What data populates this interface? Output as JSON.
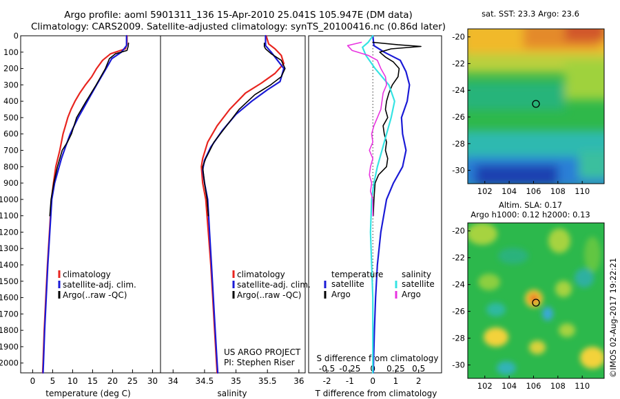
{
  "header": {
    "title_line1": "Argo profile: aoml 5901311_136 15-Apr-2010 25.041S 105.947E (DM data)",
    "title_line2": "Climatology: CARS2009. Satellite-adjusted climatology: synTS_20100416.nc (0.86d later)"
  },
  "colors": {
    "climatology": "#e8251f",
    "satellite": "#1a1ad6",
    "argo": "#000000",
    "satellite_s": "#35e3e3",
    "argo_s": "#e832e0"
  },
  "depth_ticks": [
    "0",
    "100",
    "200",
    "300",
    "400",
    "500",
    "600",
    "700",
    "800",
    "900",
    "1000",
    "1100",
    "1200",
    "1300",
    "1400",
    "1500",
    "1600",
    "1700",
    "1800",
    "1900",
    "2000"
  ],
  "panels": {
    "temperature": {
      "xlabel": "temperature (deg C)",
      "xticks": [
        "0",
        "5",
        "10",
        "15",
        "20",
        "25",
        "30"
      ],
      "legend": [
        "climatology",
        "satellite-adj. clim.",
        "Argo(..raw -QC)"
      ]
    },
    "salinity": {
      "xlabel": "salinity",
      "xticks": [
        "34",
        "34.5",
        "35",
        "35.5",
        "36"
      ],
      "legend": [
        "climatology",
        "satellite-adj. clim.",
        "Argo(..raw -QC)"
      ],
      "project_line1": "US ARGO PROJECT",
      "project_line2": "PI: Stephen Riser"
    },
    "difference": {
      "xlabel": "T difference from climatology",
      "xticks": [
        "-2",
        "-1",
        "0",
        "1",
        "2"
      ],
      "top_label": "S difference from climatology",
      "top_ticks": [
        "-0.5",
        "-0.25",
        "0",
        "0.25",
        "0.5"
      ],
      "legend_t_title": "temperature",
      "legend_s_title": "salinity",
      "legend_t": [
        "satellite",
        "Argo"
      ],
      "legend_s": [
        "satellite",
        "Argo"
      ]
    }
  },
  "maps": {
    "sst_title": "sat. SST: 23.3 Argo: 23.6",
    "sla_title1": "Altim. SLA: 0.17",
    "sla_title2": "Argo h1000: 0.12 h2000: 0.13",
    "lon_ticks": [
      "102",
      "104",
      "106",
      "108",
      "110"
    ],
    "lat_ticks": [
      "-20",
      "-22",
      "-24",
      "-26",
      "-28",
      "-30"
    ]
  },
  "credit": "©IMOS 02-Aug-2017 19:22:21",
  "chart_data": [
    {
      "type": "line",
      "panel": "temperature",
      "xlabel": "temperature (deg C)",
      "ylabel": "",
      "xlim": [
        -3,
        32
      ],
      "ylim": [
        2060,
        0
      ],
      "series": [
        {
          "name": "climatology",
          "color": "#e8251f",
          "width": 2.2,
          "pts": [
            [
              23.6,
              0
            ],
            [
              23.6,
              50
            ],
            [
              23.2,
              80
            ],
            [
              19.5,
              110
            ],
            [
              17.5,
              150
            ],
            [
              16,
              200
            ],
            [
              14.8,
              250
            ],
            [
              13.2,
              300
            ],
            [
              11.8,
              350
            ],
            [
              10.6,
              400
            ],
            [
              9.6,
              450
            ],
            [
              8.8,
              500
            ],
            [
              8.2,
              550
            ],
            [
              7.6,
              600
            ],
            [
              6.8,
              700
            ],
            [
              5.8,
              800
            ],
            [
              5.2,
              900
            ],
            [
              4.7,
              1000
            ],
            [
              4.2,
              1200
            ],
            [
              3.7,
              1400
            ],
            [
              3.3,
              1600
            ],
            [
              2.9,
              1800
            ],
            [
              2.6,
              2000
            ],
            [
              2.5,
              2060
            ]
          ]
        },
        {
          "name": "satellite-adj. clim.",
          "color": "#1a1ad6",
          "width": 2.2,
          "pts": [
            [
              23.5,
              0
            ],
            [
              23.5,
              60
            ],
            [
              22.2,
              100
            ],
            [
              19.8,
              140
            ],
            [
              18.4,
              200
            ],
            [
              16,
              300
            ],
            [
              13.7,
              400
            ],
            [
              11.4,
              500
            ],
            [
              9.4,
              600
            ],
            [
              8.2,
              680
            ],
            [
              7.2,
              750
            ],
            [
              6.3,
              830
            ],
            [
              5.5,
              900
            ],
            [
              4.8,
              1000
            ],
            [
              4.3,
              1200
            ],
            [
              3.8,
              1400
            ],
            [
              3.4,
              1600
            ],
            [
              3.0,
              1800
            ],
            [
              2.7,
              2000
            ],
            [
              2.6,
              2060
            ]
          ]
        },
        {
          "name": "Argo(..raw -QC)",
          "color": "#000000",
          "width": 1.6,
          "pts": [
            [
              24.0,
              45
            ],
            [
              23.9,
              65
            ],
            [
              23.6,
              90
            ],
            [
              20.7,
              110
            ],
            [
              19.2,
              140
            ],
            [
              18.2,
              200
            ],
            [
              15.9,
              300
            ],
            [
              13.4,
              400
            ],
            [
              11.0,
              500
            ],
            [
              9.7,
              600
            ],
            [
              8.7,
              650
            ],
            [
              7.4,
              700
            ],
            [
              6.2,
              800
            ],
            [
              5.3,
              900
            ],
            [
              4.6,
              1000
            ],
            [
              4.3,
              1100
            ]
          ]
        }
      ]
    },
    {
      "type": "line",
      "panel": "salinity",
      "xlabel": "salinity",
      "ylabel": "",
      "xlim": [
        33.8,
        36.1
      ],
      "ylim": [
        2060,
        0
      ],
      "series": [
        {
          "name": "climatology",
          "color": "#e8251f",
          "width": 2.2,
          "pts": [
            [
              35.48,
              0
            ],
            [
              35.52,
              50
            ],
            [
              35.62,
              80
            ],
            [
              35.72,
              120
            ],
            [
              35.76,
              170
            ],
            [
              35.62,
              230
            ],
            [
              35.4,
              290
            ],
            [
              35.15,
              350
            ],
            [
              34.9,
              450
            ],
            [
              34.7,
              550
            ],
            [
              34.55,
              650
            ],
            [
              34.47,
              750
            ],
            [
              34.45,
              800
            ],
            [
              34.47,
              900
            ],
            [
              34.52,
              1000
            ],
            [
              34.56,
              1200
            ],
            [
              34.6,
              1400
            ],
            [
              34.63,
              1600
            ],
            [
              34.66,
              1800
            ],
            [
              34.69,
              2000
            ],
            [
              34.7,
              2060
            ]
          ]
        },
        {
          "name": "satellite-adj. clim.",
          "color": "#1a1ad6",
          "width": 2.2,
          "pts": [
            [
              35.47,
              0
            ],
            [
              35.47,
              60
            ],
            [
              35.56,
              100
            ],
            [
              35.66,
              150
            ],
            [
              35.76,
              200
            ],
            [
              35.7,
              280
            ],
            [
              35.5,
              330
            ],
            [
              35.25,
              400
            ],
            [
              35.0,
              480
            ],
            [
              34.78,
              580
            ],
            [
              34.6,
              680
            ],
            [
              34.5,
              760
            ],
            [
              34.47,
              820
            ],
            [
              34.5,
              900
            ],
            [
              34.55,
              1000
            ],
            [
              34.58,
              1200
            ],
            [
              34.61,
              1400
            ],
            [
              34.64,
              1600
            ],
            [
              34.67,
              1800
            ],
            [
              34.7,
              2000
            ],
            [
              34.71,
              2060
            ]
          ]
        },
        {
          "name": "Argo(..raw -QC)",
          "color": "#000000",
          "width": 1.6,
          "pts": [
            [
              35.45,
              45
            ],
            [
              35.45,
              65
            ],
            [
              35.47,
              80
            ],
            [
              35.56,
              110
            ],
            [
              35.72,
              150
            ],
            [
              35.78,
              200
            ],
            [
              35.72,
              250
            ],
            [
              35.55,
              300
            ],
            [
              35.3,
              360
            ],
            [
              35.05,
              450
            ],
            [
              34.85,
              550
            ],
            [
              34.65,
              650
            ],
            [
              34.52,
              750
            ],
            [
              34.47,
              800
            ],
            [
              34.5,
              900
            ],
            [
              34.54,
              1000
            ],
            [
              34.56,
              1100
            ]
          ]
        }
      ]
    },
    {
      "type": "line",
      "panel": "difference",
      "xlabel": "T difference from climatology",
      "ylabel": "",
      "xlim": [
        -2.8,
        3.0
      ],
      "ylim": [
        2060,
        0
      ],
      "series": [
        {
          "name": "satellite",
          "group": "temperature",
          "color": "#1a1ad6",
          "width": 2.2,
          "pts": [
            [
              0.0,
              0
            ],
            [
              0.05,
              60
            ],
            [
              0.5,
              100
            ],
            [
              1.2,
              150
            ],
            [
              1.45,
              220
            ],
            [
              1.6,
              300
            ],
            [
              1.5,
              400
            ],
            [
              1.25,
              500
            ],
            [
              1.3,
              600
            ],
            [
              1.45,
              700
            ],
            [
              1.3,
              800
            ],
            [
              0.9,
              900
            ],
            [
              0.6,
              1000
            ],
            [
              0.35,
              1200
            ],
            [
              0.2,
              1400
            ],
            [
              0.12,
              1600
            ],
            [
              0.07,
              1800
            ],
            [
              0.03,
              2000
            ],
            [
              0.02,
              2060
            ]
          ]
        },
        {
          "name": "Argo",
          "group": "temperature",
          "color": "#000000",
          "width": 1.6,
          "pts": [
            [
              0.0,
              40
            ],
            [
              1.1,
              55
            ],
            [
              2.1,
              65
            ],
            [
              0.8,
              80
            ],
            [
              0.3,
              100
            ],
            [
              0.55,
              130
            ],
            [
              0.9,
              160
            ],
            [
              1.15,
              200
            ],
            [
              1.1,
              250
            ],
            [
              0.85,
              300
            ],
            [
              0.7,
              350
            ],
            [
              0.6,
              400
            ],
            [
              0.55,
              450
            ],
            [
              0.65,
              500
            ],
            [
              0.45,
              550
            ],
            [
              0.5,
              600
            ],
            [
              0.6,
              650
            ],
            [
              0.55,
              700
            ],
            [
              0.65,
              750
            ],
            [
              0.6,
              800
            ],
            [
              0.25,
              850
            ],
            [
              0.1,
              900
            ],
            [
              0.05,
              1000
            ],
            [
              0.02,
              1100
            ]
          ]
        },
        {
          "name": "satellite",
          "group": "salinity",
          "color": "#35e3e3",
          "width": 2.2,
          "pts": [
            [
              0.0,
              0
            ],
            [
              -0.2,
              40
            ],
            [
              -0.45,
              70
            ],
            [
              -0.3,
              120
            ],
            [
              0.1,
              200
            ],
            [
              0.7,
              300
            ],
            [
              0.95,
              400
            ],
            [
              0.8,
              500
            ],
            [
              0.6,
              600
            ],
            [
              0.4,
              700
            ],
            [
              0.2,
              800
            ],
            [
              0.05,
              900
            ],
            [
              -0.05,
              1000
            ],
            [
              -0.1,
              1200
            ],
            [
              -0.05,
              1400
            ],
            [
              0.0,
              1600
            ],
            [
              0.0,
              1800
            ],
            [
              0.0,
              2000
            ],
            [
              0.0,
              2060
            ]
          ]
        },
        {
          "name": "Argo",
          "group": "salinity",
          "color": "#e832e0",
          "width": 1.6,
          "pts": [
            [
              -0.5,
              40
            ],
            [
              -1.1,
              60
            ],
            [
              -0.9,
              90
            ],
            [
              -0.2,
              120
            ],
            [
              0.2,
              150
            ],
            [
              0.35,
              200
            ],
            [
              0.55,
              250
            ],
            [
              0.6,
              300
            ],
            [
              0.45,
              350
            ],
            [
              0.4,
              400
            ],
            [
              0.35,
              450
            ],
            [
              0.2,
              500
            ],
            [
              0.05,
              550
            ],
            [
              -0.05,
              600
            ],
            [
              0.0,
              650
            ],
            [
              -0.15,
              700
            ],
            [
              0.0,
              750
            ],
            [
              -0.1,
              800
            ],
            [
              -0.15,
              850
            ],
            [
              -0.05,
              900
            ],
            [
              -0.1,
              950
            ],
            [
              0.0,
              1000
            ],
            [
              0.0,
              1100
            ]
          ]
        }
      ]
    }
  ]
}
